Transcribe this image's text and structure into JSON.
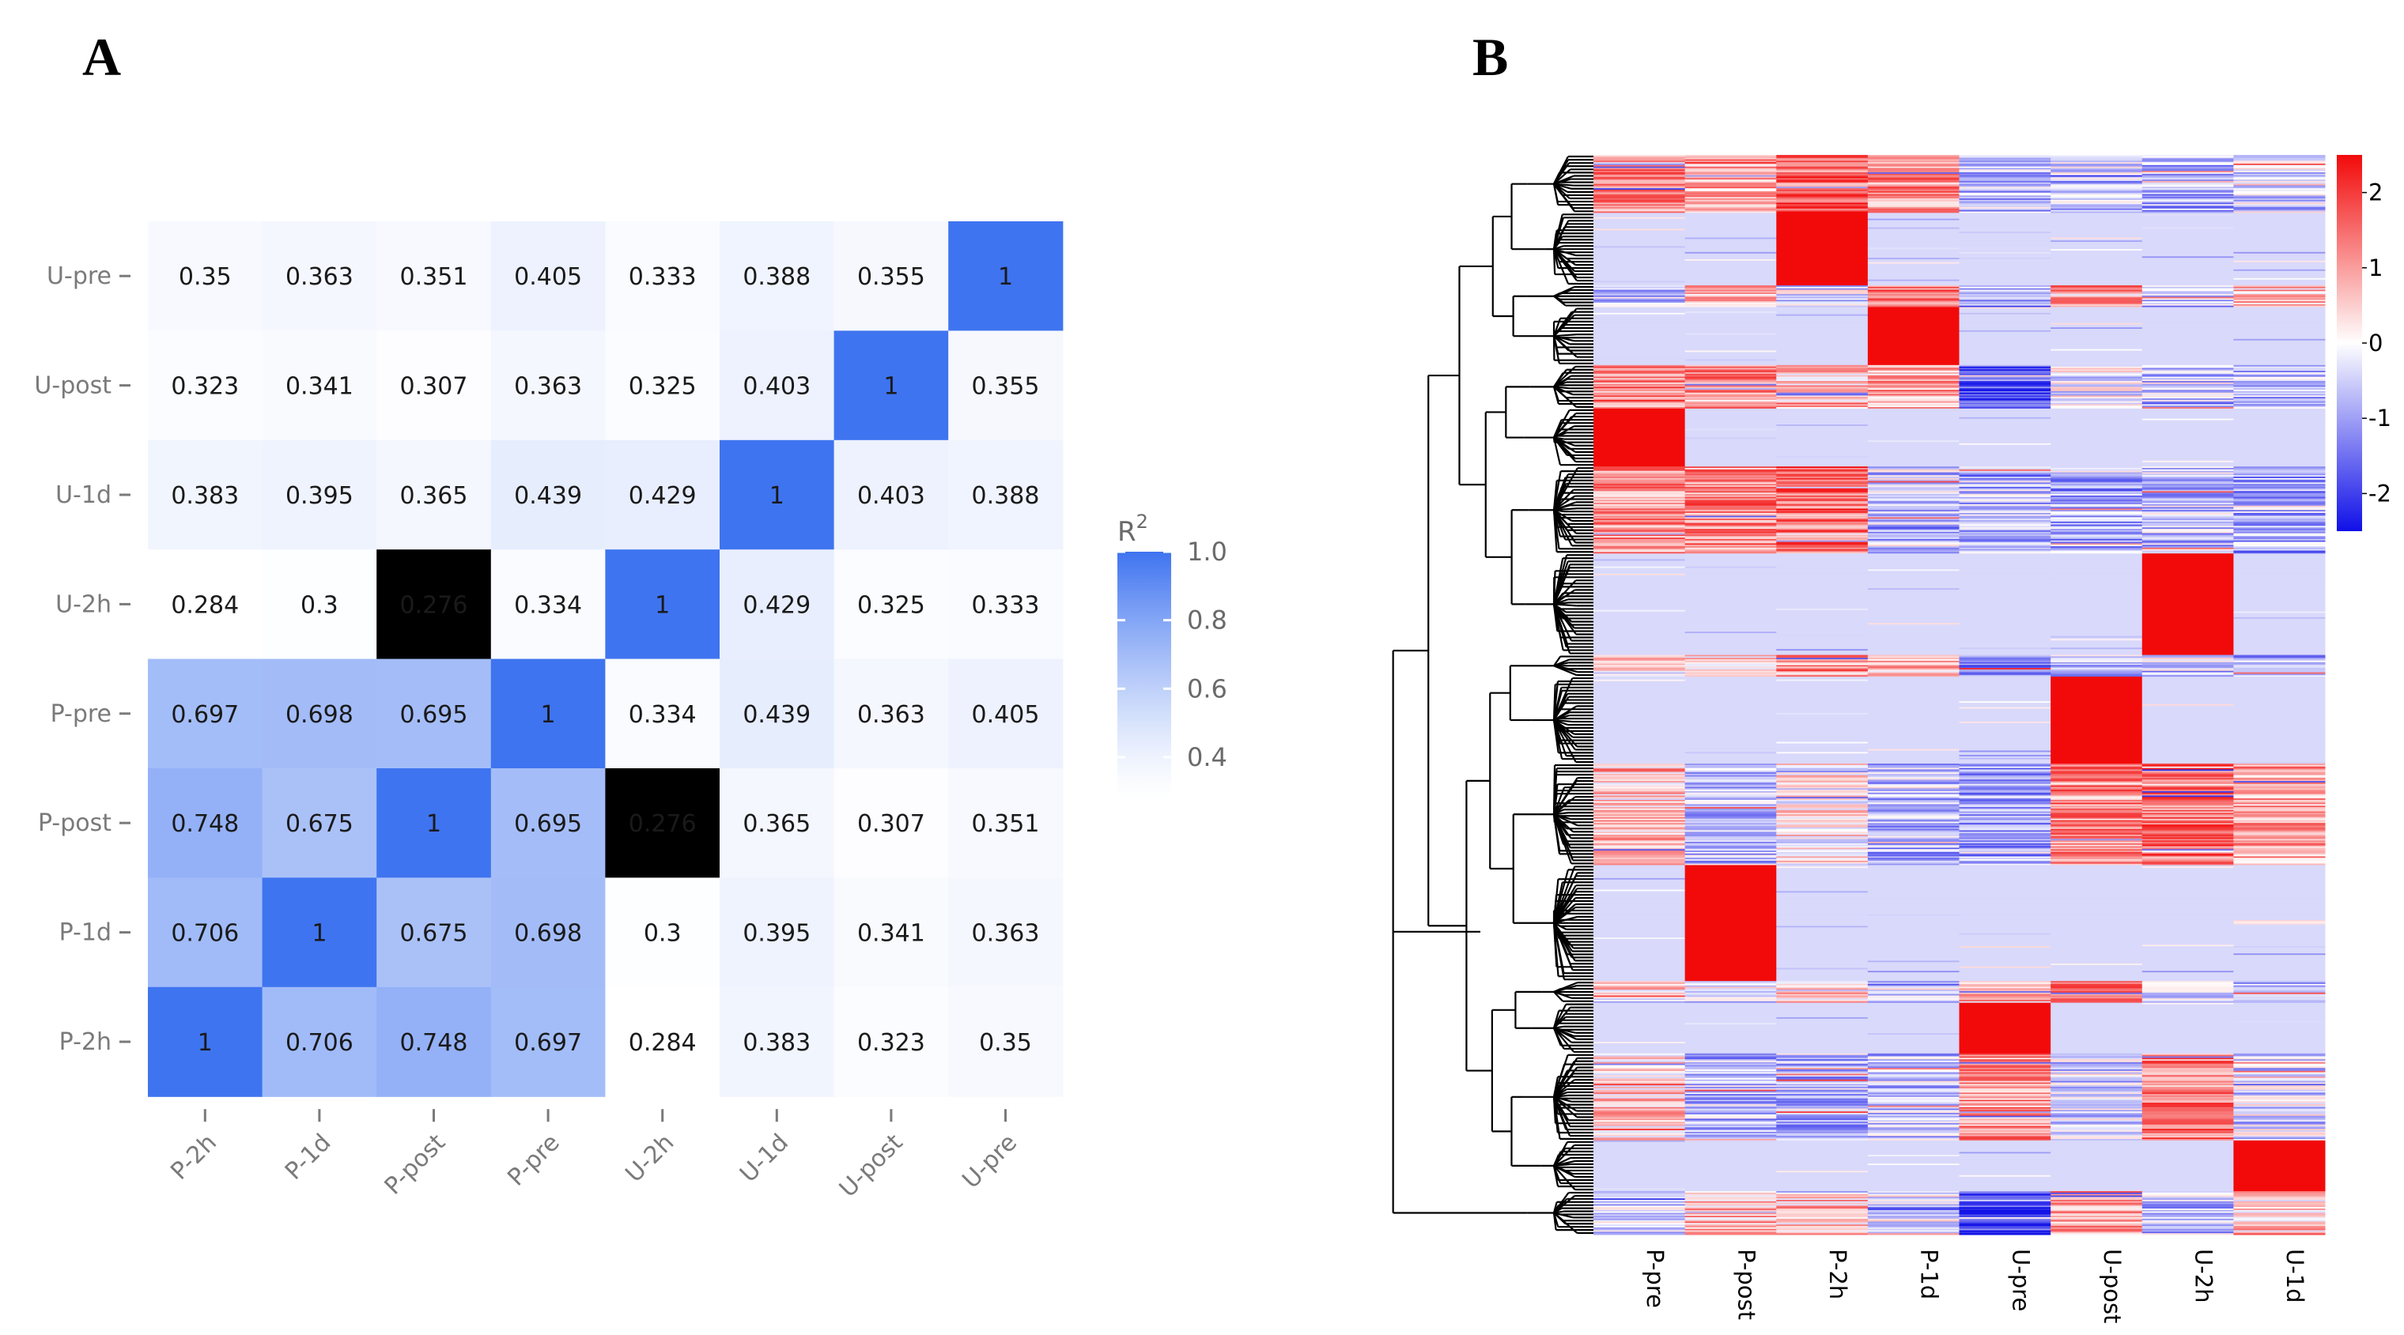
{
  "panels": {
    "a_label": "A",
    "b_label": "B"
  },
  "colors": {
    "corr_low": "#ffffff",
    "corr_high": "#3f74f0",
    "hm_low": "#1010e8",
    "hm_mid": "#ffffff",
    "hm_high": "#f20a0a",
    "hm_background": "#d9dcf6"
  },
  "chart_data": [
    {
      "type": "heatmap",
      "title": "",
      "panel": "A",
      "x_categories": [
        "P-2h",
        "P-1d",
        "P-post",
        "P-pre",
        "U-2h",
        "U-1d",
        "U-post",
        "U-pre"
      ],
      "y_categories": [
        "U-pre",
        "U-post",
        "U-1d",
        "U-2h",
        "P-pre",
        "P-post",
        "P-1d",
        "P-2h"
      ],
      "values": [
        [
          "0.35",
          "0.363",
          "0.351",
          "0.405",
          "0.333",
          "0.388",
          "0.355",
          "1"
        ],
        [
          "0.323",
          "0.341",
          "0.307",
          "0.363",
          "0.325",
          "0.403",
          "1",
          "0.355"
        ],
        [
          "0.383",
          "0.395",
          "0.365",
          "0.439",
          "0.429",
          "1",
          "0.403",
          "0.388"
        ],
        [
          "0.284",
          "0.3",
          "0.276",
          "0.334",
          "1",
          "0.429",
          "0.325",
          "0.333"
        ],
        [
          "0.697",
          "0.698",
          "0.695",
          "1",
          "0.334",
          "0.439",
          "0.363",
          "0.405"
        ],
        [
          "0.748",
          "0.675",
          "1",
          "0.695",
          "0.276",
          "0.365",
          "0.307",
          "0.351"
        ],
        [
          "0.706",
          "1",
          "0.675",
          "0.698",
          "0.3",
          "0.395",
          "0.341",
          "0.363"
        ],
        [
          "1",
          "0.706",
          "0.748",
          "0.697",
          "0.284",
          "0.383",
          "0.323",
          "0.35"
        ]
      ],
      "legend": {
        "title_base": "R",
        "title_sup": "2",
        "range": [
          0.28,
          1.0
        ],
        "ticks": [
          {
            "value": 1.0,
            "label": "1.0"
          },
          {
            "value": 0.8,
            "label": "0.8"
          },
          {
            "value": 0.6,
            "label": "0.6"
          },
          {
            "value": 0.4,
            "label": "0.4"
          }
        ]
      }
    },
    {
      "type": "heatmap",
      "title": "",
      "panel": "B",
      "x_categories": [
        "P-pre",
        "P-post",
        "P-2h",
        "P-1d",
        "U-pre",
        "U-post",
        "U-2h",
        "U-1d"
      ],
      "value_range": [
        -2.5,
        2.5
      ],
      "clusters": [
        {
          "rows": 40,
          "profile": [
            1.3,
            0.9,
            1.6,
            1.2,
            -0.7,
            -0.5,
            -0.8,
            -0.5
          ]
        },
        {
          "rows": 50,
          "profile": [
            -0.4,
            -0.4,
            2.4,
            -0.4,
            -0.4,
            -0.4,
            -0.4,
            -0.4
          ]
        },
        {
          "rows": 15,
          "profile": [
            -0.6,
            0.7,
            -0.3,
            1.5,
            -0.6,
            0.9,
            -0.7,
            0.6
          ]
        },
        {
          "rows": 40,
          "profile": [
            -0.4,
            -0.4,
            -0.4,
            2.4,
            -0.4,
            -0.4,
            -0.4,
            -0.4
          ]
        },
        {
          "rows": 30,
          "profile": [
            1.3,
            1.1,
            0.6,
            0.9,
            -1.8,
            -0.2,
            -0.6,
            -0.8
          ]
        },
        {
          "rows": 40,
          "profile": [
            2.4,
            -0.4,
            -0.4,
            -0.4,
            -0.4,
            -0.4,
            -0.4,
            -0.4
          ]
        },
        {
          "rows": 60,
          "profile": [
            1.1,
            1.2,
            1.5,
            -0.5,
            -0.7,
            -0.9,
            -0.6,
            -0.8
          ]
        },
        {
          "rows": 70,
          "profile": [
            -0.4,
            -0.4,
            -0.4,
            -0.4,
            -0.4,
            -0.4,
            2.4,
            -0.4
          ]
        },
        {
          "rows": 15,
          "profile": [
            0.2,
            0.6,
            0.9,
            0.7,
            -1.2,
            -0.6,
            -0.5,
            -0.6
          ]
        },
        {
          "rows": 60,
          "profile": [
            -0.4,
            -0.4,
            -0.4,
            -0.4,
            -0.4,
            2.4,
            -0.4,
            -0.4
          ]
        },
        {
          "rows": 70,
          "profile": [
            0.5,
            -0.6,
            0.2,
            -0.8,
            -1.0,
            1.2,
            1.4,
            0.9
          ]
        },
        {
          "rows": 80,
          "profile": [
            -0.4,
            2.4,
            -0.4,
            -0.4,
            -0.4,
            -0.4,
            -0.4,
            -0.4
          ]
        },
        {
          "rows": 15,
          "profile": [
            0.4,
            -0.3,
            0.6,
            -0.4,
            0.8,
            1.4,
            -0.5,
            -0.8
          ]
        },
        {
          "rows": 35,
          "profile": [
            -0.4,
            -0.4,
            -0.4,
            -0.4,
            2.4,
            -0.4,
            -0.4,
            -0.4
          ]
        },
        {
          "rows": 60,
          "profile": [
            0.5,
            -0.7,
            -0.7,
            -0.6,
            1.0,
            -0.5,
            1.3,
            -0.4
          ]
        },
        {
          "rows": 35,
          "profile": [
            -0.4,
            -0.4,
            -0.4,
            -0.4,
            -0.4,
            -0.4,
            -0.4,
            2.4
          ]
        },
        {
          "rows": 30,
          "profile": [
            -0.5,
            0.7,
            0.6,
            -0.3,
            -2.0,
            1.1,
            -0.6,
            0.5
          ]
        }
      ],
      "legend": {
        "ticks": [
          {
            "value": 2,
            "label": "2"
          },
          {
            "value": 1,
            "label": "1"
          },
          {
            "value": 0,
            "label": "0"
          },
          {
            "value": -1,
            "label": "-1"
          },
          {
            "value": -2,
            "label": "-2"
          }
        ]
      }
    }
  ]
}
